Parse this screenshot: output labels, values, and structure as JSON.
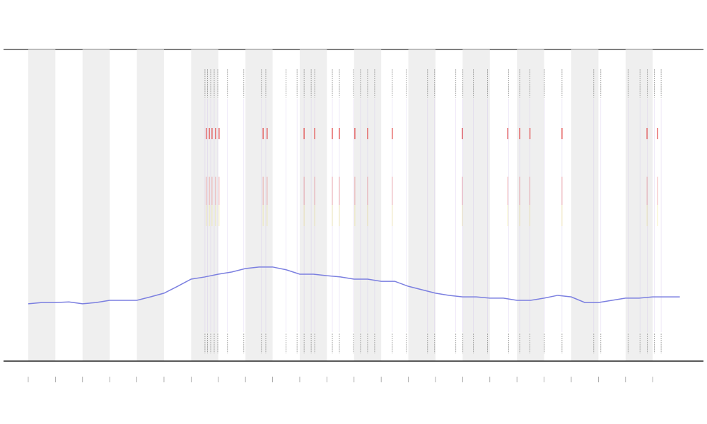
{
  "chart_data": {
    "type": "line",
    "xlim": [
      -0.91,
      24.87
    ],
    "ylim": [
      0,
      100
    ],
    "xticks": [
      0,
      1,
      2,
      3,
      4,
      5,
      6,
      7,
      8,
      9,
      10,
      11,
      12,
      13,
      14,
      15,
      16,
      17,
      18,
      19,
      20,
      21,
      22,
      23
    ],
    "shaded": [
      [
        0,
        1
      ],
      [
        2,
        3
      ],
      [
        4,
        5
      ],
      [
        6,
        7
      ],
      [
        8,
        9
      ],
      [
        10,
        11
      ],
      [
        12,
        13
      ],
      [
        14,
        15
      ],
      [
        16,
        17
      ],
      [
        18,
        19
      ],
      [
        20,
        21
      ],
      [
        22,
        23
      ]
    ],
    "shade_color": "#efefef",
    "x": [
      0,
      0.5,
      1,
      1.5,
      2,
      2.5,
      3,
      3.5,
      4,
      4.5,
      5,
      5.5,
      6,
      6.5,
      7,
      7.5,
      8,
      8.5,
      9,
      9.5,
      10,
      10.5,
      11,
      11.5,
      12,
      12.5,
      13,
      13.5,
      14,
      14.5,
      15,
      15.5,
      16,
      16.5,
      17,
      17.5,
      18,
      18.5,
      19,
      19.5,
      20,
      20.5,
      21,
      21.5,
      22,
      22.5,
      23,
      23.5,
      24
    ],
    "series": [
      {
        "color": "#7b7fe0",
        "values": [
          18.4,
          18.8,
          18.8,
          19.0,
          18.4,
          18.8,
          19.5,
          19.5,
          19.5,
          20.6,
          21.8,
          24.0,
          26.3,
          27.0,
          27.9,
          28.6,
          29.7,
          30.2,
          30.2,
          29.3,
          27.9,
          27.9,
          27.4,
          27.0,
          26.3,
          26.3,
          25.6,
          25.6,
          24.0,
          22.9,
          21.8,
          21.1,
          20.6,
          20.6,
          20.2,
          20.2,
          19.5,
          19.5,
          20.2,
          21.1,
          20.6,
          18.8,
          18.8,
          19.5,
          20.2,
          20.2,
          20.6,
          20.6,
          20.6
        ]
      }
    ],
    "events": [
      6.51,
      6.6,
      6.72,
      6.85,
      6.98,
      7.34,
      7.94,
      8.59,
      8.75,
      9.5,
      9.9,
      10.16,
      10.42,
      10.55,
      11.2,
      11.46,
      11.98,
      12.24,
      12.5,
      12.76,
      13.41,
      13.93,
      14.71,
      14.97,
      15.75,
      16.01,
      16.4,
      16.92,
      17.7,
      18.1,
      18.48,
      19.01,
      19.66,
      20.83,
      21.09,
      22.09,
      22.53,
      22.8,
      23.06,
      23.31
    ],
    "highlights": [
      6.56,
      6.67,
      6.77,
      6.9,
      7.03,
      8.65,
      8.8,
      10.16,
      10.55,
      11.2,
      11.46,
      12.03,
      12.5,
      13.41,
      15.99,
      17.66,
      18.1,
      18.48,
      19.66,
      22.79,
      23.18
    ],
    "highlight_color": "#e04545",
    "rug_color": "#777777"
  }
}
